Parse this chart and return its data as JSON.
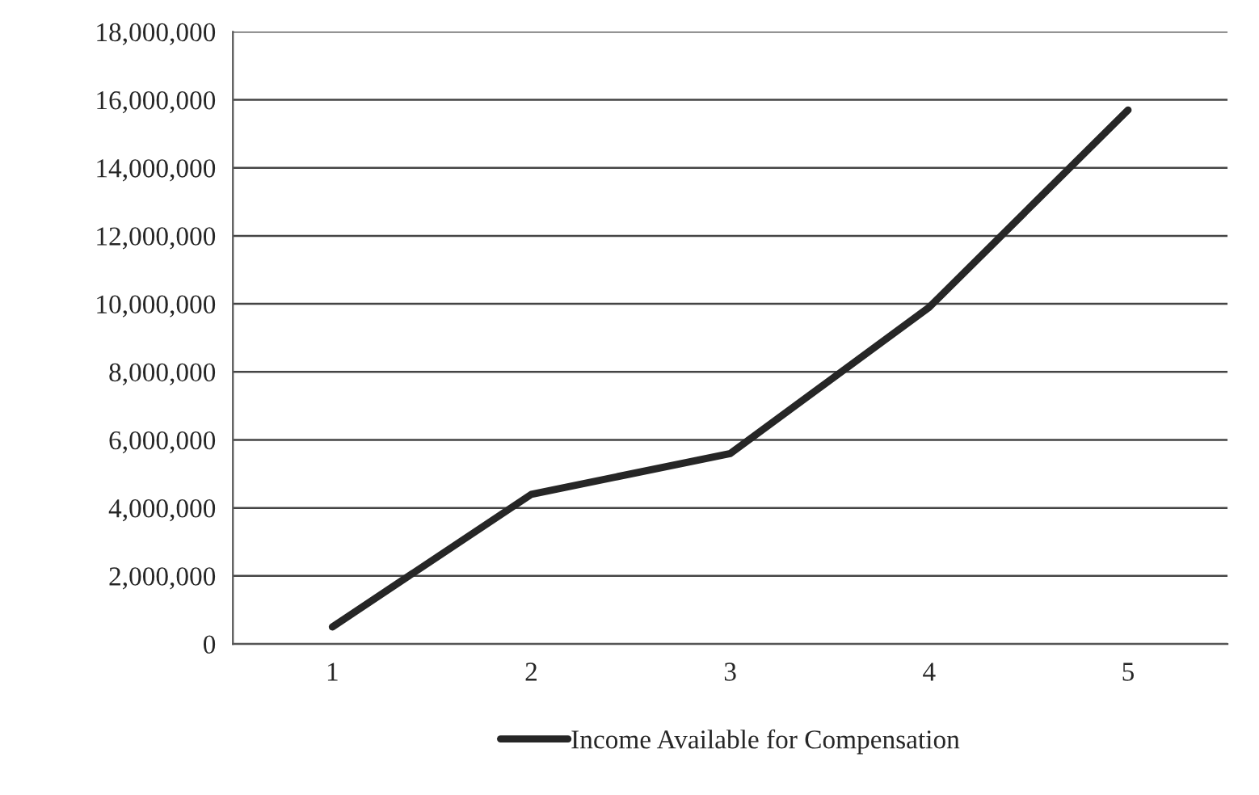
{
  "chart_data": {
    "type": "line",
    "categories": [
      "1",
      "2",
      "3",
      "4",
      "5"
    ],
    "series": [
      {
        "name": "Income Available for Compensation",
        "color": "#262626",
        "values": [
          500000,
          4400000,
          5600000,
          9900000,
          15700000
        ]
      }
    ],
    "ylim": [
      0,
      18000000
    ],
    "yticks": [
      0,
      {
        "value": 2000000,
        "label": "2,000,000"
      },
      {
        "value": 4000000,
        "label": "4,000,000"
      },
      {
        "value": 6000000,
        "label": "6,000,000"
      },
      {
        "value": 8000000,
        "label": "8,000,000"
      },
      {
        "value": 10000000,
        "label": "10,000,000"
      },
      {
        "value": 12000000,
        "label": "12,000,000"
      },
      {
        "value": 14000000,
        "label": "14,000,000"
      },
      {
        "value": 16000000,
        "label": "16,000,000"
      },
      {
        "value": 18000000,
        "label": "18,000,000"
      }
    ],
    "grid": "y",
    "legend": "bottom",
    "marker": "none",
    "line_style": "solid"
  }
}
